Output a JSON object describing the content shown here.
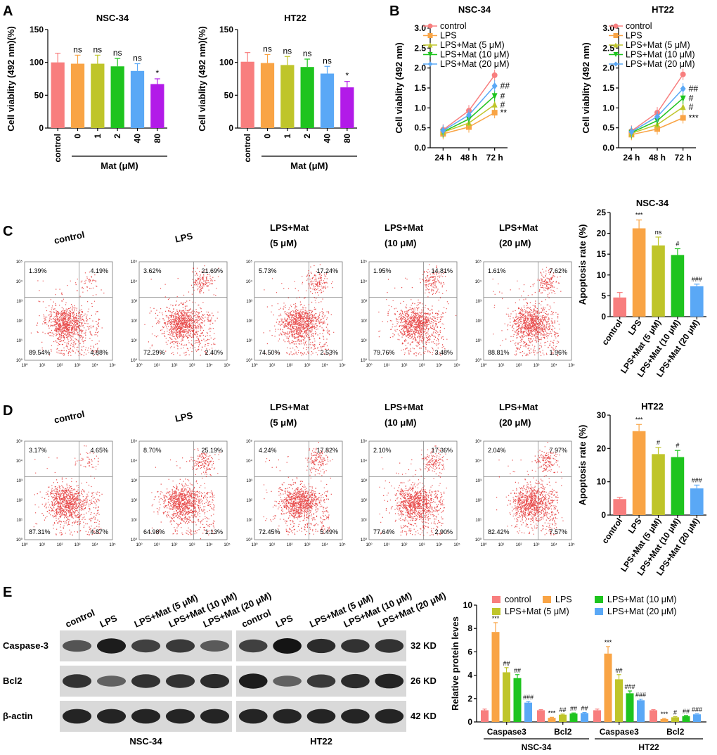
{
  "panel_labels": [
    "A",
    "B",
    "C",
    "D",
    "E"
  ],
  "colors": {
    "control": "#f87e7e",
    "lps": "#f9a445",
    "mat_low": "#bfc52a",
    "mat_mid": "#1ec41e",
    "mat_high": "#5aa8f6",
    "mat80": "#b21ae8",
    "scatter": "#e01010"
  },
  "chart_data": [
    {
      "id": "A1",
      "type": "bar",
      "title": "NSC-34",
      "ylabel": "Cell viablity (492 nm)(%)",
      "ylim": [
        0,
        150
      ],
      "yticks": [
        0,
        50,
        100,
        150
      ],
      "categories": [
        "control",
        "0",
        "1",
        "2",
        "40",
        "80"
      ],
      "values": [
        100,
        98,
        98,
        94,
        87,
        67
      ],
      "errors": [
        14,
        13,
        13,
        12,
        11,
        8
      ],
      "significance": [
        "",
        "ns",
        "ns",
        "ns",
        "ns",
        "*"
      ],
      "group_label": "Mat (μM)",
      "colors": [
        "#f87e7e",
        "#f9a445",
        "#bfc52a",
        "#1ec41e",
        "#5aa8f6",
        "#b21ae8"
      ]
    },
    {
      "id": "A2",
      "type": "bar",
      "title": "HT22",
      "ylabel": "Cell viablity (492 nm)(%)",
      "ylim": [
        0,
        150
      ],
      "yticks": [
        0,
        50,
        100,
        150
      ],
      "categories": [
        "control",
        "0",
        "1",
        "2",
        "40",
        "80"
      ],
      "values": [
        101,
        99,
        96,
        93,
        83,
        62
      ],
      "errors": [
        14,
        13,
        13,
        12,
        11,
        9
      ],
      "significance": [
        "",
        "ns",
        "ns",
        "ns",
        "ns",
        "*"
      ],
      "group_label": "Mat (μM)",
      "colors": [
        "#f87e7e",
        "#f9a445",
        "#bfc52a",
        "#1ec41e",
        "#5aa8f6",
        "#b21ae8"
      ]
    },
    {
      "id": "B1",
      "type": "line",
      "title": "NSC-34",
      "ylabel": "Cell viablity (492 nm)",
      "ylim": [
        0,
        3.0
      ],
      "yticks": [
        "0.0",
        "0.5",
        "1.0",
        "1.5",
        "2.0",
        "2.5",
        "3.0"
      ],
      "categories": [
        "24 h",
        "48 h",
        "72 h"
      ],
      "series": [
        {
          "name": "control",
          "values": [
            0.45,
            0.93,
            1.82
          ],
          "marker": "circle",
          "color": "#f87e7e"
        },
        {
          "name": "LPS",
          "values": [
            0.35,
            0.52,
            0.88
          ],
          "marker": "square",
          "color": "#f9a445"
        },
        {
          "name": "LPS+Mat (5 μM)",
          "values": [
            0.39,
            0.62,
            1.08
          ],
          "marker": "triangle-up",
          "color": "#bfc52a"
        },
        {
          "name": "LPS+Mat (10 μM)",
          "values": [
            0.4,
            0.72,
            1.3
          ],
          "marker": "triangle-down",
          "color": "#1ec41e"
        },
        {
          "name": "LPS+Mat (20 μM)",
          "values": [
            0.43,
            0.82,
            1.55
          ],
          "marker": "diamond",
          "color": "#5aa8f6"
        }
      ],
      "end_labels": [
        "",
        "**",
        "#",
        "#",
        "##"
      ]
    },
    {
      "id": "B2",
      "type": "line",
      "title": "HT22",
      "ylabel": "Cell viablity (492 nm)",
      "ylim": [
        0,
        3.0
      ],
      "yticks": [
        "0.0",
        "0.5",
        "1.0",
        "1.5",
        "2.0",
        "2.5",
        "3.0"
      ],
      "categories": [
        "24 h",
        "48 h",
        "72 h"
      ],
      "series": [
        {
          "name": "control",
          "values": [
            0.42,
            0.88,
            1.84
          ],
          "marker": "circle",
          "color": "#f87e7e"
        },
        {
          "name": "LPS",
          "values": [
            0.33,
            0.47,
            0.75
          ],
          "marker": "square",
          "color": "#f9a445"
        },
        {
          "name": "LPS+Mat (5 μM)",
          "values": [
            0.36,
            0.58,
            1.02
          ],
          "marker": "triangle-up",
          "color": "#bfc52a"
        },
        {
          "name": "LPS+Mat (10 μM)",
          "values": [
            0.38,
            0.68,
            1.24
          ],
          "marker": "triangle-down",
          "color": "#1ec41e"
        },
        {
          "name": "LPS+Mat (20 μM)",
          "values": [
            0.4,
            0.78,
            1.48
          ],
          "marker": "diamond",
          "color": "#5aa8f6"
        }
      ],
      "end_labels": [
        "",
        "***",
        "#",
        "#",
        "##"
      ]
    },
    {
      "id": "C",
      "type": "scatter",
      "groups": [
        {
          "title": [
            "control"
          ],
          "quadrants": [
            "1.39%",
            "4.19%",
            "89.54%",
            "4.88%"
          ]
        },
        {
          "title": [
            "LPS"
          ],
          "quadrants": [
            "3.62%",
            "21.69%",
            "72.29%",
            "2.40%"
          ]
        },
        {
          "title": [
            "LPS+Mat",
            "(5 μM)"
          ],
          "quadrants": [
            "5.73%",
            "17.24%",
            "74.50%",
            "2.53%"
          ]
        },
        {
          "title": [
            "LPS+Mat",
            "(10 μM)"
          ],
          "quadrants": [
            "1.95%",
            "14.81%",
            "79.76%",
            "3.48%"
          ]
        },
        {
          "title": [
            "LPS+Mat",
            "(20 μM)"
          ],
          "quadrants": [
            "1.61%",
            "7.62%",
            "88.81%",
            "1.96%"
          ]
        }
      ],
      "axis_ticks": [
        "10⁰",
        "10¹",
        "10²",
        "10³",
        "10⁴",
        "10⁵"
      ]
    },
    {
      "id": "C-bar",
      "type": "bar",
      "title": "NSC-34",
      "ylabel": "Apoptosis rate (%)",
      "ylim": [
        0,
        25
      ],
      "yticks": [
        0,
        5,
        10,
        15,
        20,
        25
      ],
      "categories": [
        "control",
        "LPS",
        "LPS+Mat (5 μM)",
        "LPS+Mat (10 μM)",
        "LPS+Mat (20 μM)"
      ],
      "values": [
        4.6,
        21.2,
        17.1,
        14.8,
        7.3
      ],
      "errors": [
        1.2,
        2.0,
        2.0,
        1.5,
        0.5
      ],
      "significance": [
        "",
        "***",
        "ns",
        "#",
        "###"
      ],
      "colors": [
        "#f87e7e",
        "#f9a445",
        "#bfc52a",
        "#1ec41e",
        "#5aa8f6"
      ]
    },
    {
      "id": "D",
      "type": "scatter",
      "groups": [
        {
          "title": [
            "control"
          ],
          "quadrants": [
            "3.17%",
            "4.65%",
            "87.31%",
            "4.87%"
          ]
        },
        {
          "title": [
            "LPS"
          ],
          "quadrants": [
            "8.70%",
            "25.19%",
            "64.98%",
            "1.13%"
          ]
        },
        {
          "title": [
            "LPS+Mat",
            "(5 μM)"
          ],
          "quadrants": [
            "4.24%",
            "17.82%",
            "72.45%",
            "5.49%"
          ]
        },
        {
          "title": [
            "LPS+Mat",
            "(10 μM)"
          ],
          "quadrants": [
            "2.10%",
            "17.36%",
            "77.64%",
            "2.90%"
          ]
        },
        {
          "title": [
            "LPS+Mat",
            "(20 μM)"
          ],
          "quadrants": [
            "2.04%",
            "7.97%",
            "82.42%",
            "7.57%"
          ]
        }
      ],
      "axis_ticks": [
        "10⁰",
        "10¹",
        "10²",
        "10³",
        "10⁴",
        "10⁵"
      ]
    },
    {
      "id": "D-bar",
      "type": "bar",
      "title": "HT22",
      "ylabel": "Apoptosis rate (%)",
      "ylim": [
        0,
        30
      ],
      "yticks": [
        0,
        10,
        20,
        30
      ],
      "categories": [
        "control",
        "LPS",
        "LPS+Mat (5 μM)",
        "LPS+Mat (10 μM)",
        "LPS+Mat (20 μM)"
      ],
      "values": [
        4.8,
        25.2,
        18.3,
        17.4,
        8.0
      ],
      "errors": [
        0.5,
        2.0,
        2.0,
        2.0,
        1.0
      ],
      "significance": [
        "",
        "***",
        "#",
        "#",
        "###"
      ],
      "colors": [
        "#f87e7e",
        "#f9a445",
        "#bfc52a",
        "#1ec41e",
        "#5aa8f6"
      ]
    },
    {
      "id": "E-bar",
      "type": "bar",
      "ylabel": "Relative protein leves",
      "ylim": [
        0,
        10
      ],
      "yticks": [
        0,
        2,
        4,
        6,
        8,
        10
      ],
      "series_names": [
        "control",
        "LPS",
        "LPS+Mat (5 μM)",
        "LPS+Mat (10 μM)",
        "LPS+Mat (20 μM)"
      ],
      "series_colors": [
        "#f87e7e",
        "#f9a445",
        "#bfc52a",
        "#1ec41e",
        "#5aa8f6"
      ],
      "groups": [
        {
          "label": "Caspase3",
          "cell": "NSC-34",
          "values": [
            1.0,
            7.7,
            4.25,
            3.75,
            1.65
          ],
          "errors": [
            0.1,
            0.8,
            0.4,
            0.3,
            0.1
          ],
          "sig": [
            "",
            "***",
            "##",
            "##",
            "###"
          ]
        },
        {
          "label": "Bcl2",
          "cell": "NSC-34",
          "values": [
            1.0,
            0.35,
            0.62,
            0.72,
            0.76
          ],
          "errors": [
            0.05,
            0.05,
            0.05,
            0.05,
            0.05
          ],
          "sig": [
            "",
            "***",
            "##",
            "##",
            "##"
          ]
        },
        {
          "label": "Caspase3",
          "cell": "HT22",
          "values": [
            1.0,
            5.85,
            3.65,
            2.45,
            1.85
          ],
          "errors": [
            0.1,
            0.6,
            0.4,
            0.2,
            0.1
          ],
          "sig": [
            "",
            "***",
            "##",
            "###",
            "###"
          ]
        },
        {
          "label": "Bcl2",
          "cell": "HT22",
          "values": [
            1.0,
            0.25,
            0.4,
            0.5,
            0.65
          ],
          "errors": [
            0.05,
            0.05,
            0.05,
            0.05,
            0.05
          ],
          "sig": [
            "",
            "***",
            "#",
            "##",
            "###"
          ]
        }
      ],
      "cell_labels": [
        "NSC-34",
        "HT22"
      ]
    }
  ],
  "blot": {
    "lanes": [
      "control",
      "LPS",
      "LPS+Mat (5 μM)",
      "LPS+Mat (10 μM)",
      "LPS+Mat (20 μM)"
    ],
    "rows": [
      "Caspase-3",
      "Bcl2",
      "β-actin"
    ],
    "sizes": [
      "32 KD",
      "26 KD",
      "42 KD"
    ],
    "cells": [
      "NSC-34",
      "HT22"
    ],
    "intensity": {
      "NSC-34": [
        [
          0.55,
          0.95,
          0.7,
          0.75,
          0.5
        ],
        [
          0.8,
          0.45,
          0.8,
          0.8,
          0.85
        ],
        [
          0.9,
          0.9,
          0.9,
          0.9,
          0.9
        ]
      ],
      "HT22": [
        [
          0.7,
          1.0,
          0.85,
          0.8,
          0.8
        ],
        [
          0.95,
          0.45,
          0.75,
          0.85,
          0.9
        ],
        [
          0.9,
          0.9,
          0.9,
          0.9,
          0.9
        ]
      ]
    }
  }
}
